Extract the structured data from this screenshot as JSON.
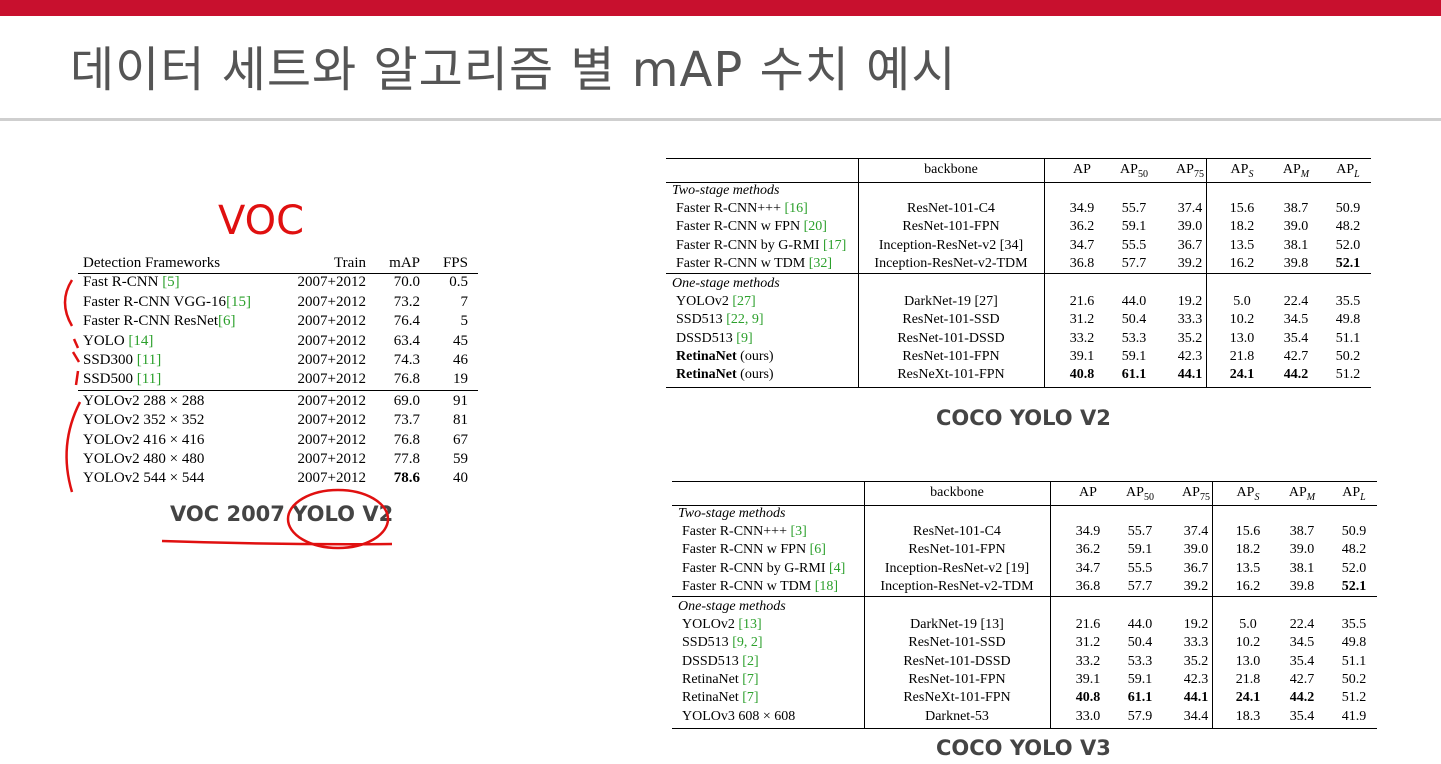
{
  "slide": {
    "title": "데이터 세트와 알고리즘 별 mAP 수치 예시",
    "handwritten_label": "VOC"
  },
  "voc_table": {
    "headers": [
      "Detection Frameworks",
      "Train",
      "mAP",
      "FPS"
    ],
    "rows": [
      {
        "name": "Fast R-CNN ",
        "ref": "[5]",
        "train": "2007+2012",
        "map": "70.0",
        "fps": "0.5"
      },
      {
        "name": "Faster R-CNN VGG-16",
        "ref": "[15]",
        "train": "2007+2012",
        "map": "73.2",
        "fps": "7"
      },
      {
        "name": "Faster R-CNN ResNet",
        "ref": "[6]",
        "train": "2007+2012",
        "map": "76.4",
        "fps": "5"
      },
      {
        "name": "YOLO ",
        "ref": "[14]",
        "train": "2007+2012",
        "map": "63.4",
        "fps": "45"
      },
      {
        "name": "SSD300 ",
        "ref": "[11]",
        "train": "2007+2012",
        "map": "74.3",
        "fps": "46"
      },
      {
        "name": "SSD500 ",
        "ref": "[11]",
        "train": "2007+2012",
        "map": "76.8",
        "fps": "19"
      },
      {
        "name": "YOLOv2 288 × 288",
        "ref": "",
        "train": "2007+2012",
        "map": "69.0",
        "fps": "91"
      },
      {
        "name": "YOLOv2 352 × 352",
        "ref": "",
        "train": "2007+2012",
        "map": "73.7",
        "fps": "81"
      },
      {
        "name": "YOLOv2 416 × 416",
        "ref": "",
        "train": "2007+2012",
        "map": "76.8",
        "fps": "67"
      },
      {
        "name": "YOLOv2 480 × 480",
        "ref": "",
        "train": "2007+2012",
        "map": "77.8",
        "fps": "59"
      },
      {
        "name": "YOLOv2 544 × 544",
        "ref": "",
        "train": "2007+2012",
        "map": "78.6",
        "fps": "40"
      }
    ],
    "caption": "VOC 2007 YOLO V2"
  },
  "coco_v2": {
    "headers": {
      "backbone": "backbone",
      "ap": "AP",
      "ap50": "AP",
      "ap50_sub": "50",
      "ap75": "AP",
      "ap75_sub": "75",
      "aps": "AP",
      "aps_sub": "S",
      "apm": "AP",
      "apm_sub": "M",
      "apl": "AP",
      "apl_sub": "L"
    },
    "sec1": "Two-stage methods",
    "sec2": "One-stage methods",
    "rows": [
      {
        "name": "Faster R-CNN+++ ",
        "ref": "[16]",
        "bb": "ResNet-101-C4",
        "v": [
          "34.9",
          "55.7",
          "37.4",
          "15.6",
          "38.7",
          "50.9"
        ]
      },
      {
        "name": "Faster R-CNN w FPN ",
        "ref": "[20]",
        "bb": "ResNet-101-FPN",
        "v": [
          "36.2",
          "59.1",
          "39.0",
          "18.2",
          "39.0",
          "48.2"
        ]
      },
      {
        "name": "Faster R-CNN by G-RMI ",
        "ref": "[17]",
        "bb": "Inception-ResNet-v2 [34]",
        "v": [
          "34.7",
          "55.5",
          "36.7",
          "13.5",
          "38.1",
          "52.0"
        ]
      },
      {
        "name": "Faster R-CNN w TDM ",
        "ref": "[32]",
        "bb": "Inception-ResNet-v2-TDM",
        "v": [
          "36.8",
          "57.7",
          "39.2",
          "16.2",
          "39.8",
          "52.1"
        ]
      },
      {
        "name": "YOLOv2 ",
        "ref": "[27]",
        "bb": "DarkNet-19 [27]",
        "v": [
          "21.6",
          "44.0",
          "19.2",
          "5.0",
          "22.4",
          "35.5"
        ]
      },
      {
        "name": "SSD513 ",
        "ref": "[22, 9]",
        "bb": "ResNet-101-SSD",
        "v": [
          "31.2",
          "50.4",
          "33.3",
          "10.2",
          "34.5",
          "49.8"
        ]
      },
      {
        "name": "DSSD513 ",
        "ref": "[9]",
        "bb": "ResNet-101-DSSD",
        "v": [
          "33.2",
          "53.3",
          "35.2",
          "13.0",
          "35.4",
          "51.1"
        ]
      },
      {
        "name": "RetinaNet",
        "suffix": " (ours)",
        "ref": "",
        "bb": "ResNet-101-FPN",
        "v": [
          "39.1",
          "59.1",
          "42.3",
          "21.8",
          "42.7",
          "50.2"
        ]
      },
      {
        "name": "RetinaNet",
        "suffix": " (ours)",
        "ref": "",
        "bb": "ResNeXt-101-FPN",
        "v": [
          "40.8",
          "61.1",
          "44.1",
          "24.1",
          "44.2",
          "51.2"
        ]
      }
    ],
    "caption": "COCO YOLO V2"
  },
  "coco_v3": {
    "headers": {
      "backbone": "backbone",
      "ap": "AP",
      "ap50": "AP",
      "ap50_sub": "50",
      "ap75": "AP",
      "ap75_sub": "75",
      "aps": "AP",
      "aps_sub": "S",
      "apm": "AP",
      "apm_sub": "M",
      "apl": "AP",
      "apl_sub": "L"
    },
    "sec1": "Two-stage methods",
    "sec2": "One-stage methods",
    "rows": [
      {
        "name": "Faster R-CNN+++ ",
        "ref": "[3]",
        "bb": "ResNet-101-C4",
        "v": [
          "34.9",
          "55.7",
          "37.4",
          "15.6",
          "38.7",
          "50.9"
        ]
      },
      {
        "name": "Faster R-CNN w FPN ",
        "ref": "[6]",
        "bb": "ResNet-101-FPN",
        "v": [
          "36.2",
          "59.1",
          "39.0",
          "18.2",
          "39.0",
          "48.2"
        ]
      },
      {
        "name": "Faster R-CNN by G-RMI ",
        "ref": "[4]",
        "bb": "Inception-ResNet-v2 [19]",
        "v": [
          "34.7",
          "55.5",
          "36.7",
          "13.5",
          "38.1",
          "52.0"
        ]
      },
      {
        "name": "Faster R-CNN w TDM ",
        "ref": "[18]",
        "bb": "Inception-ResNet-v2-TDM",
        "v": [
          "36.8",
          "57.7",
          "39.2",
          "16.2",
          "39.8",
          "52.1"
        ]
      },
      {
        "name": "YOLOv2 ",
        "ref": "[13]",
        "bb": "DarkNet-19 [13]",
        "v": [
          "21.6",
          "44.0",
          "19.2",
          "5.0",
          "22.4",
          "35.5"
        ]
      },
      {
        "name": "SSD513 ",
        "ref": "[9, 2]",
        "bb": "ResNet-101-SSD",
        "v": [
          "31.2",
          "50.4",
          "33.3",
          "10.2",
          "34.5",
          "49.8"
        ]
      },
      {
        "name": "DSSD513 ",
        "ref": "[2]",
        "bb": "ResNet-101-DSSD",
        "v": [
          "33.2",
          "53.3",
          "35.2",
          "13.0",
          "35.4",
          "51.1"
        ]
      },
      {
        "name": "RetinaNet ",
        "ref": "[7]",
        "bb": "ResNet-101-FPN",
        "v": [
          "39.1",
          "59.1",
          "42.3",
          "21.8",
          "42.7",
          "50.2"
        ]
      },
      {
        "name": "RetinaNet ",
        "ref": "[7]",
        "bb": "ResNeXt-101-FPN",
        "v": [
          "40.8",
          "61.1",
          "44.1",
          "24.1",
          "44.2",
          "51.2"
        ]
      },
      {
        "name": "YOLOv3 608 × 608",
        "ref": "",
        "bb": "Darknet-53",
        "v": [
          "33.0",
          "57.9",
          "34.4",
          "18.3",
          "35.4",
          "41.9"
        ]
      }
    ],
    "caption": "COCO YOLO V3"
  },
  "colors": {
    "accent_bar": "#c8102e",
    "citation": "#2ca02c",
    "annotation": "#e01010"
  }
}
